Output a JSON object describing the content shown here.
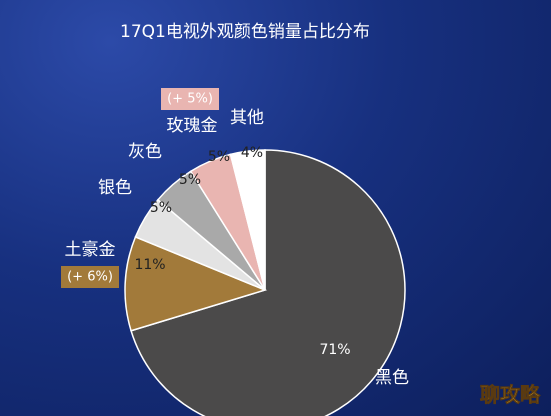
{
  "chart_data": {
    "type": "pie",
    "title": "17Q1电视外观颜色销量占比分布",
    "categories": [
      "黑色",
      "土豪金",
      "银色",
      "灰色",
      "玫瑰金",
      "其他"
    ],
    "values": [
      71,
      11,
      5,
      5,
      5,
      4
    ],
    "value_labels": [
      "71%",
      "11%",
      "5%",
      "5%",
      "5%",
      "4%"
    ],
    "colors": [
      "#4b4a4a",
      "#a27a3a",
      "#e3e3e3",
      "#a9a9a9",
      "#e9b5b1",
      "#ffffff"
    ],
    "annotations": [
      "(+ 5%)",
      "(+ 6%)"
    ],
    "watermark": "聊攻略"
  }
}
